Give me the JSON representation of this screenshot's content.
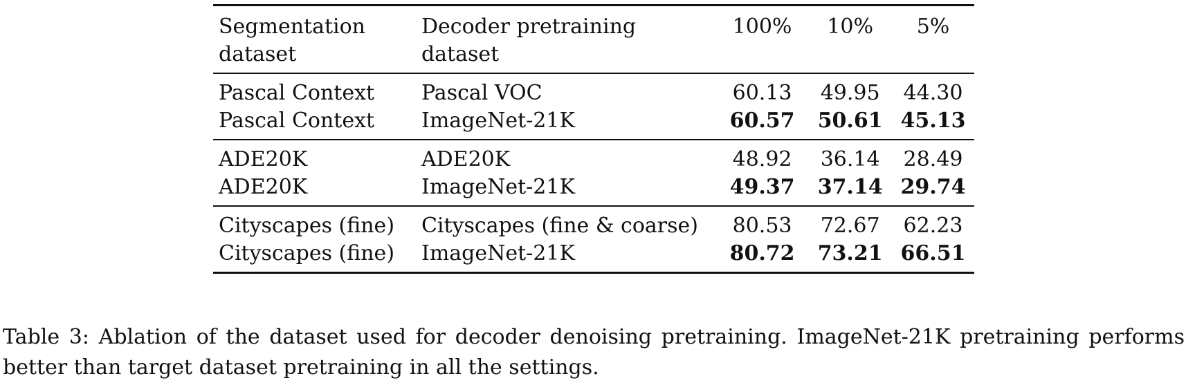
{
  "table": {
    "headers": [
      [
        "Segmentation",
        "dataset"
      ],
      [
        "Decoder pretraining",
        "dataset"
      ],
      [
        "100%"
      ],
      [
        "10%"
      ],
      [
        "5%"
      ]
    ],
    "groups": [
      {
        "rows": [
          {
            "seg": "Pascal Context",
            "pre": "Pascal VOC",
            "v100": "60.13",
            "v10": "49.95",
            "v5": "44.30",
            "bold": false
          },
          {
            "seg": "Pascal Context",
            "pre": "ImageNet-21K",
            "v100": "60.57",
            "v10": "50.61",
            "v5": "45.13",
            "bold": true
          }
        ]
      },
      {
        "rows": [
          {
            "seg": "ADE20K",
            "pre": "ADE20K",
            "v100": "48.92",
            "v10": "36.14",
            "v5": "28.49",
            "bold": false
          },
          {
            "seg": "ADE20K",
            "pre": "ImageNet-21K",
            "v100": "49.37",
            "v10": "37.14",
            "v5": "29.74",
            "bold": true
          }
        ]
      },
      {
        "rows": [
          {
            "seg": "Cityscapes (fine)",
            "pre": "Cityscapes (fine & coarse)",
            "v100": "80.53",
            "v10": "72.67",
            "v5": "62.23",
            "bold": false
          },
          {
            "seg": "Cityscapes (fine)",
            "pre": "ImageNet-21K",
            "v100": "80.72",
            "v10": "73.21",
            "v5": "66.51",
            "bold": true
          }
        ]
      }
    ]
  },
  "caption": "Table 3: Ablation of the dataset used for decoder denoising pretraining. ImageNet-21K pretraining performs better than target dataset pretraining in all the settings."
}
